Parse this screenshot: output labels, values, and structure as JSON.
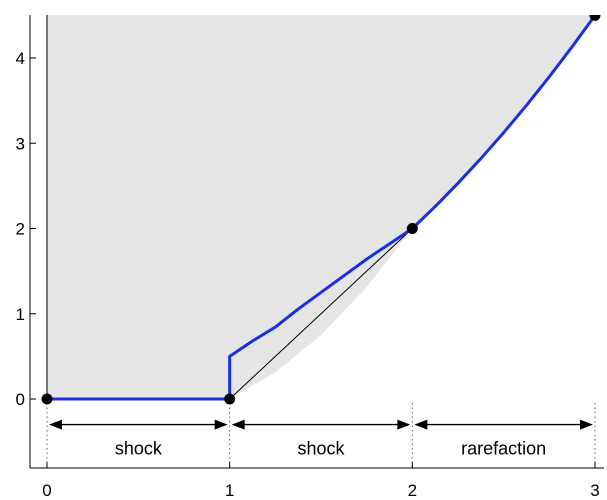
{
  "chart_data": {
    "type": "line",
    "title": "",
    "xlabel": "",
    "ylabel": "",
    "xlim": [
      0,
      3
    ],
    "ylim": [
      -0.75,
      4.5
    ],
    "grid": false,
    "legend": "none",
    "x_ticks": [
      0,
      1,
      2,
      3
    ],
    "y_ticks": [
      0,
      1,
      2,
      3,
      4
    ],
    "x_tick_labels": [
      "0",
      "1",
      "2",
      "3"
    ],
    "y_tick_labels": [
      "0",
      "1",
      "2",
      "3",
      "4"
    ],
    "colors": {
      "curve": "#1a2ee6",
      "shade": "#e5e5e5",
      "points": "#000000",
      "thin_line": "#000000"
    },
    "shaded_boundary": {
      "description_free": true,
      "x": [
        0,
        1,
        1.25,
        1.5,
        1.75,
        2,
        2.25,
        2.5,
        2.75,
        3
      ],
      "y": [
        0,
        0,
        0.3125,
        0.75,
        1.3125,
        2,
        2.53125,
        3.125,
        3.78125,
        4.5
      ]
    },
    "series": [
      {
        "x": [
          0,
          1,
          1,
          1.125,
          1.25,
          1.375,
          1.5,
          1.625,
          1.75,
          1.875,
          2,
          2.125,
          2.25,
          2.375,
          2.5,
          2.625,
          2.75,
          2.875,
          3
        ],
        "y": [
          0,
          0,
          0.5,
          0.6797,
          0.8438,
          1.0547,
          1.25,
          1.4453,
          1.6406,
          1.8203,
          2,
          2.2578,
          2.5313,
          2.8203,
          3.125,
          3.4453,
          3.7813,
          4.1328,
          4.5
        ]
      }
    ],
    "thin_line": {
      "x": [
        1,
        2
      ],
      "y": [
        0,
        2
      ]
    },
    "points": [
      {
        "x": 0,
        "y": 0
      },
      {
        "x": 1,
        "y": 0
      },
      {
        "x": 2,
        "y": 2
      },
      {
        "x": 3,
        "y": 4.5
      }
    ],
    "divider_x": [
      0,
      1,
      2,
      3
    ],
    "arrow_y": -0.3,
    "regions": [
      {
        "from": 0,
        "to": 1,
        "label": "shock"
      },
      {
        "from": 1,
        "to": 2,
        "label": "shock"
      },
      {
        "from": 2,
        "to": 3,
        "label": "rarefaction"
      }
    ]
  }
}
